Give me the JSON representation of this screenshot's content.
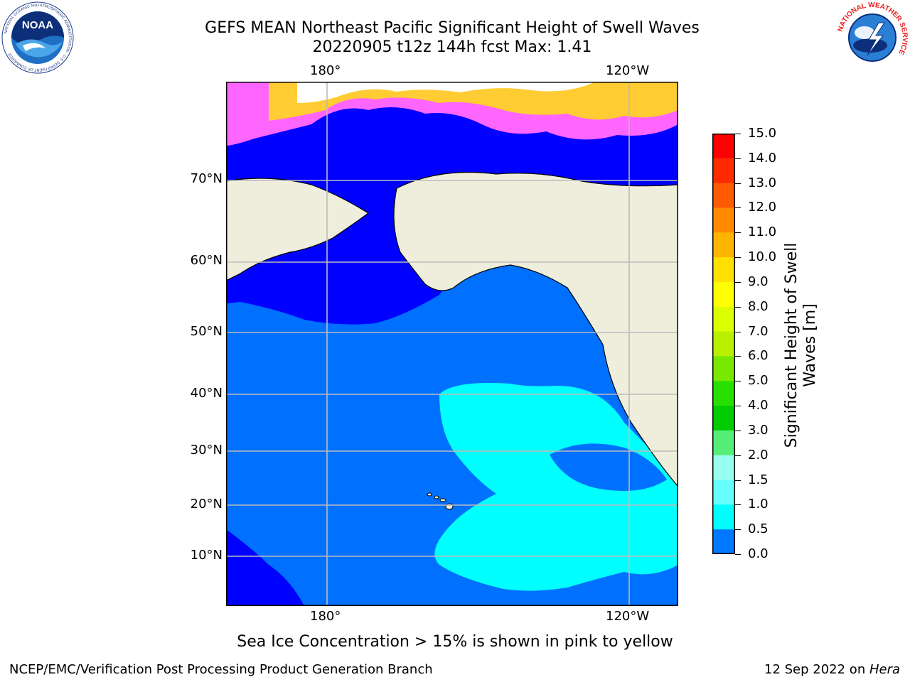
{
  "header": {
    "title_line1": "GEFS MEAN Northeast Pacific Significant Height of Swell Waves",
    "title_line2": "20220905 t12z 144h fcst   Max: 1.41"
  },
  "logos": {
    "noaa": {
      "text": "NOAA",
      "ring_text": "NATIONAL OCEANIC AND ATMOSPHERIC ADMINISTRATION · U.S. DEPARTMENT OF COMMERCE"
    },
    "nws": {
      "ring_text": "NATIONAL WEATHER SERVICE"
    }
  },
  "map": {
    "lon_ticks": [
      "180°",
      "120°W"
    ],
    "lat_ticks": [
      "70°N",
      "60°N",
      "50°N",
      "40°N",
      "30°N",
      "20°N",
      "10°N"
    ],
    "colors": {
      "land": "#efeedc",
      "deep_blue": "#0000ff",
      "mid_blue": "#0070ff",
      "cyan": "#00ffff",
      "ice": "#ff66ff",
      "ice_yellow": "#ffcc33",
      "grid": "#bbbbbb"
    }
  },
  "colorbar": {
    "title": "Significant Height of Swell Waves [m]",
    "labels": [
      "15.0",
      "14.0",
      "13.0",
      "12.0",
      "11.0",
      "10.0",
      "9.0",
      "8.0",
      "7.0",
      "6.0",
      "5.0",
      "4.0",
      "3.0",
      "2.0",
      "1.5",
      "1.0",
      "0.5",
      "0.0"
    ],
    "colors": [
      "#ff0000",
      "#ff2a00",
      "#ff5a00",
      "#ff8a00",
      "#ffb400",
      "#ffe000",
      "#ffff00",
      "#dcff00",
      "#b8f000",
      "#78e800",
      "#28e000",
      "#00cc00",
      "#55ee77",
      "#99ffee",
      "#66ffff",
      "#00ffff",
      "#0078ff",
      "#0000ff"
    ]
  },
  "note": "Sea Ice Concentration > 15% is shown in pink to yellow",
  "footer": {
    "left": "NCEP/EMC/Verification Post Processing Product Generation Branch",
    "date": "12 Sep 2022 on ",
    "host": "Hera"
  }
}
